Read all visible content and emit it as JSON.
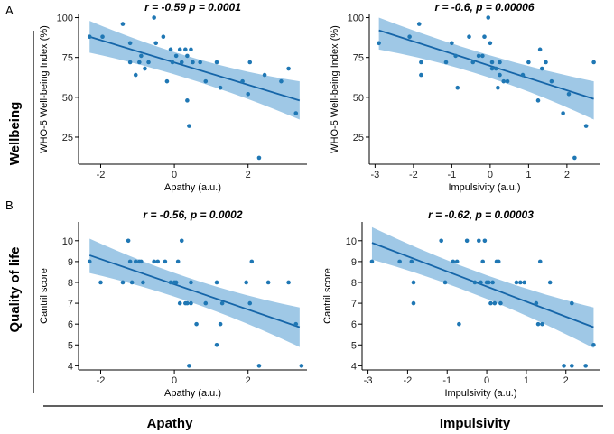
{
  "figure": {
    "panel_labels": [
      "A",
      "B"
    ],
    "row_labels": [
      "Wellbeing",
      "Quality of life"
    ],
    "column_labels": [
      "Apathy",
      "Impulsivity"
    ]
  },
  "colors": {
    "point": "#1f77b4",
    "line": "#1565a8",
    "band": "#7fb6de"
  },
  "chart_data": [
    {
      "type": "scatter",
      "title": "r = -0.59 p = 0.0001",
      "xlabel": "Apathy (a.u.)",
      "ylabel": "WHO-5 Well-being Index (%)",
      "xlim": [
        -2.6,
        3.6
      ],
      "ylim": [
        8,
        102
      ],
      "xticks": [
        -2,
        0,
        2
      ],
      "yticks": [
        25,
        50,
        75,
        100
      ],
      "fit": {
        "x0": -2.3,
        "y0": 88,
        "x1": 3.4,
        "y1": 48
      },
      "band": {
        "upper": [
          [
            -2.3,
            98
          ],
          [
            0.55,
            70
          ],
          [
            3.4,
            60
          ]
        ],
        "lower": [
          [
            -2.3,
            78
          ],
          [
            0.55,
            64
          ],
          [
            3.4,
            36
          ]
        ]
      },
      "points": [
        [
          -2.3,
          88
        ],
        [
          -1.95,
          88
        ],
        [
          -1.4,
          96
        ],
        [
          -1.2,
          84
        ],
        [
          -1.2,
          72
        ],
        [
          -1.05,
          64
        ],
        [
          -0.95,
          72
        ],
        [
          -0.9,
          76
        ],
        [
          -0.8,
          68
        ],
        [
          -0.7,
          72
        ],
        [
          -0.55,
          100
        ],
        [
          -0.5,
          84
        ],
        [
          -0.3,
          88
        ],
        [
          -0.2,
          60
        ],
        [
          -0.1,
          80
        ],
        [
          -0.05,
          72
        ],
        [
          0.05,
          76
        ],
        [
          0.15,
          80
        ],
        [
          0.2,
          72
        ],
        [
          0.3,
          80
        ],
        [
          0.35,
          76
        ],
        [
          0.35,
          48
        ],
        [
          0.4,
          32
        ],
        [
          0.45,
          80
        ],
        [
          0.5,
          72
        ],
        [
          0.7,
          72
        ],
        [
          0.85,
          60
        ],
        [
          1.15,
          72
        ],
        [
          1.25,
          56
        ],
        [
          1.85,
          60
        ],
        [
          2.0,
          52
        ],
        [
          2.05,
          72
        ],
        [
          2.3,
          12
        ],
        [
          2.45,
          64
        ],
        [
          2.9,
          60
        ],
        [
          3.1,
          68
        ],
        [
          3.3,
          40
        ]
      ]
    },
    {
      "type": "scatter",
      "title": "r = -0.6, p = 0.00006",
      "xlabel": "Impulsivity (a.u.)",
      "ylabel": "WHO-5 Well-being Index (%)",
      "xlim": [
        -3.15,
        2.85
      ],
      "ylim": [
        8,
        102
      ],
      "xticks": [
        -3,
        -2,
        -1,
        0,
        1,
        2
      ],
      "yticks": [
        25,
        50,
        75,
        100
      ],
      "fit": {
        "x0": -2.9,
        "y0": 92,
        "x1": 2.7,
        "y1": 49
      },
      "band": {
        "upper": [
          [
            -2.9,
            100
          ],
          [
            -0.1,
            74
          ],
          [
            2.7,
            60
          ]
        ],
        "lower": [
          [
            -2.9,
            80
          ],
          [
            -0.1,
            68
          ],
          [
            2.7,
            36
          ]
        ]
      },
      "points": [
        [
          -2.9,
          84
        ],
        [
          -2.1,
          88
        ],
        [
          -1.85,
          96
        ],
        [
          -1.8,
          72
        ],
        [
          -1.8,
          64
        ],
        [
          -1.15,
          72
        ],
        [
          -1.0,
          84
        ],
        [
          -0.9,
          76
        ],
        [
          -0.85,
          56
        ],
        [
          -0.55,
          88
        ],
        [
          -0.45,
          72
        ],
        [
          -0.3,
          76
        ],
        [
          -0.2,
          76
        ],
        [
          -0.15,
          88
        ],
        [
          -0.05,
          100
        ],
        [
          0.0,
          84
        ],
        [
          0.05,
          72
        ],
        [
          0.05,
          68
        ],
        [
          0.15,
          68
        ],
        [
          0.2,
          56
        ],
        [
          0.25,
          64
        ],
        [
          0.25,
          72
        ],
        [
          0.35,
          60
        ],
        [
          0.45,
          60
        ],
        [
          0.85,
          64
        ],
        [
          1.0,
          72
        ],
        [
          1.25,
          48
        ],
        [
          1.3,
          80
        ],
        [
          1.35,
          68
        ],
        [
          1.45,
          72
        ],
        [
          1.6,
          60
        ],
        [
          1.9,
          40
        ],
        [
          2.05,
          52
        ],
        [
          2.2,
          12
        ],
        [
          2.5,
          32
        ],
        [
          2.7,
          72
        ]
      ]
    },
    {
      "type": "scatter",
      "title": "r = -0.56, p = 0.0002",
      "xlabel": "Apathy (a.u.)",
      "ylabel": "Cantril score",
      "xlim": [
        -2.6,
        3.6
      ],
      "ylim": [
        3.8,
        10.9
      ],
      "xticks": [
        -2,
        0,
        2
      ],
      "yticks": [
        4,
        5,
        6,
        7,
        8,
        9,
        10
      ],
      "fit": {
        "x0": -2.3,
        "y0": 9.3,
        "x1": 3.4,
        "y1": 5.85
      },
      "band": {
        "upper": [
          [
            -2.3,
            10.1
          ],
          [
            0.55,
            7.8
          ],
          [
            3.4,
            6.8
          ]
        ],
        "lower": [
          [
            -2.3,
            8.45
          ],
          [
            0.55,
            7.3
          ],
          [
            3.4,
            4.9
          ]
        ]
      },
      "points": [
        [
          -2.3,
          9
        ],
        [
          -2.0,
          8
        ],
        [
          -1.4,
          8
        ],
        [
          -1.25,
          10
        ],
        [
          -1.2,
          9
        ],
        [
          -1.15,
          8
        ],
        [
          -1.05,
          9
        ],
        [
          -0.95,
          9
        ],
        [
          -0.9,
          9
        ],
        [
          -0.85,
          8
        ],
        [
          -0.55,
          9
        ],
        [
          -0.45,
          9
        ],
        [
          -0.25,
          9
        ],
        [
          -0.1,
          8
        ],
        [
          0.0,
          8
        ],
        [
          0.05,
          8
        ],
        [
          0.1,
          9
        ],
        [
          0.15,
          7
        ],
        [
          0.2,
          10
        ],
        [
          0.3,
          7
        ],
        [
          0.35,
          7
        ],
        [
          0.4,
          4
        ],
        [
          0.45,
          7
        ],
        [
          0.45,
          8
        ],
        [
          0.6,
          6
        ],
        [
          0.85,
          7
        ],
        [
          1.15,
          8
        ],
        [
          1.15,
          5
        ],
        [
          1.25,
          6
        ],
        [
          1.3,
          7
        ],
        [
          1.95,
          8
        ],
        [
          2.05,
          7
        ],
        [
          2.1,
          9
        ],
        [
          2.3,
          4
        ],
        [
          2.55,
          8
        ],
        [
          3.1,
          8
        ],
        [
          3.3,
          6
        ],
        [
          3.45,
          4
        ]
      ]
    },
    {
      "type": "scatter",
      "title": "r = -0.62, p = 0.00003",
      "xlabel": "Impulsivity (a.u.)",
      "ylabel": "Cantril score",
      "xlim": [
        -3.15,
        2.85
      ],
      "ylim": [
        3.8,
        10.9
      ],
      "xticks": [
        -3,
        -2,
        -1,
        0,
        1,
        2
      ],
      "yticks": [
        4,
        5,
        6,
        7,
        8,
        9,
        10
      ],
      "fit": {
        "x0": -2.9,
        "y0": 9.9,
        "x1": 2.7,
        "y1": 5.85
      },
      "band": {
        "upper": [
          [
            -2.9,
            10.65
          ],
          [
            -0.1,
            8.1
          ],
          [
            2.7,
            6.8
          ]
        ],
        "lower": [
          [
            -2.9,
            9.1
          ],
          [
            -0.1,
            7.6
          ],
          [
            2.7,
            4.85
          ]
        ]
      },
      "points": [
        [
          -2.9,
          9
        ],
        [
          -2.2,
          9
        ],
        [
          -1.9,
          9
        ],
        [
          -1.85,
          8
        ],
        [
          -1.85,
          7
        ],
        [
          -1.15,
          10
        ],
        [
          -1.05,
          8
        ],
        [
          -0.85,
          9
        ],
        [
          -0.75,
          9
        ],
        [
          -0.7,
          6
        ],
        [
          -0.5,
          10
        ],
        [
          -0.3,
          8
        ],
        [
          -0.2,
          10
        ],
        [
          -0.15,
          8
        ],
        [
          -0.1,
          9
        ],
        [
          -0.05,
          10
        ],
        [
          0.0,
          8
        ],
        [
          0.05,
          8
        ],
        [
          0.1,
          7
        ],
        [
          0.15,
          8
        ],
        [
          0.2,
          7
        ],
        [
          0.25,
          9
        ],
        [
          0.3,
          9
        ],
        [
          0.35,
          7
        ],
        [
          0.75,
          8
        ],
        [
          0.85,
          8
        ],
        [
          0.95,
          8
        ],
        [
          1.25,
          7
        ],
        [
          1.3,
          6
        ],
        [
          1.35,
          9
        ],
        [
          1.4,
          6
        ],
        [
          1.6,
          8
        ],
        [
          1.95,
          4
        ],
        [
          2.15,
          4
        ],
        [
          2.15,
          7
        ],
        [
          2.5,
          4
        ],
        [
          2.7,
          5
        ]
      ]
    }
  ]
}
